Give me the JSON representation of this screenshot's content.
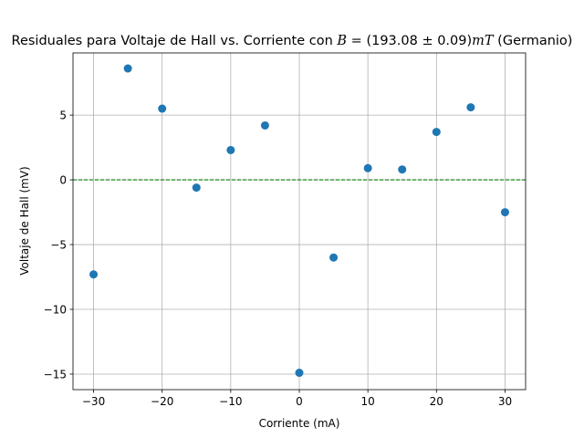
{
  "chart_data": {
    "type": "scatter",
    "title_prefix": "Residuales para Voltaje de Hall vs. Corriente con ",
    "title_math_var": "B",
    "title_math_mid": " = (193.08 ± 0.09)",
    "title_math_unit": "mT",
    "title_suffix": " (Germanio)",
    "xlabel": "Corriente (mA)",
    "ylabel": "Voltaje de Hall (mV)",
    "xlim": [
      -33,
      33
    ],
    "ylim": [
      -16.2,
      9.8
    ],
    "xticks": [
      -30,
      -20,
      -10,
      0,
      10,
      20,
      30
    ],
    "yticks": [
      -15,
      -10,
      -5,
      0,
      5
    ],
    "xtick_labels": [
      "−30",
      "−20",
      "−10",
      "0",
      "10",
      "20",
      "30"
    ],
    "ytick_labels": [
      "−15",
      "−10",
      "−5",
      "0",
      "5"
    ],
    "grid": true,
    "reference_line": {
      "y": 0,
      "style": "dashed",
      "color": "#008000"
    },
    "point_color": "#1f77b4",
    "x": [
      -30,
      -25,
      -20,
      -15,
      -10,
      -5,
      0,
      5,
      10,
      15,
      20,
      25,
      30
    ],
    "y": [
      -7.3,
      8.6,
      5.5,
      -0.6,
      2.3,
      4.2,
      -14.9,
      -6.0,
      0.9,
      0.8,
      3.7,
      5.6,
      -2.5
    ]
  }
}
